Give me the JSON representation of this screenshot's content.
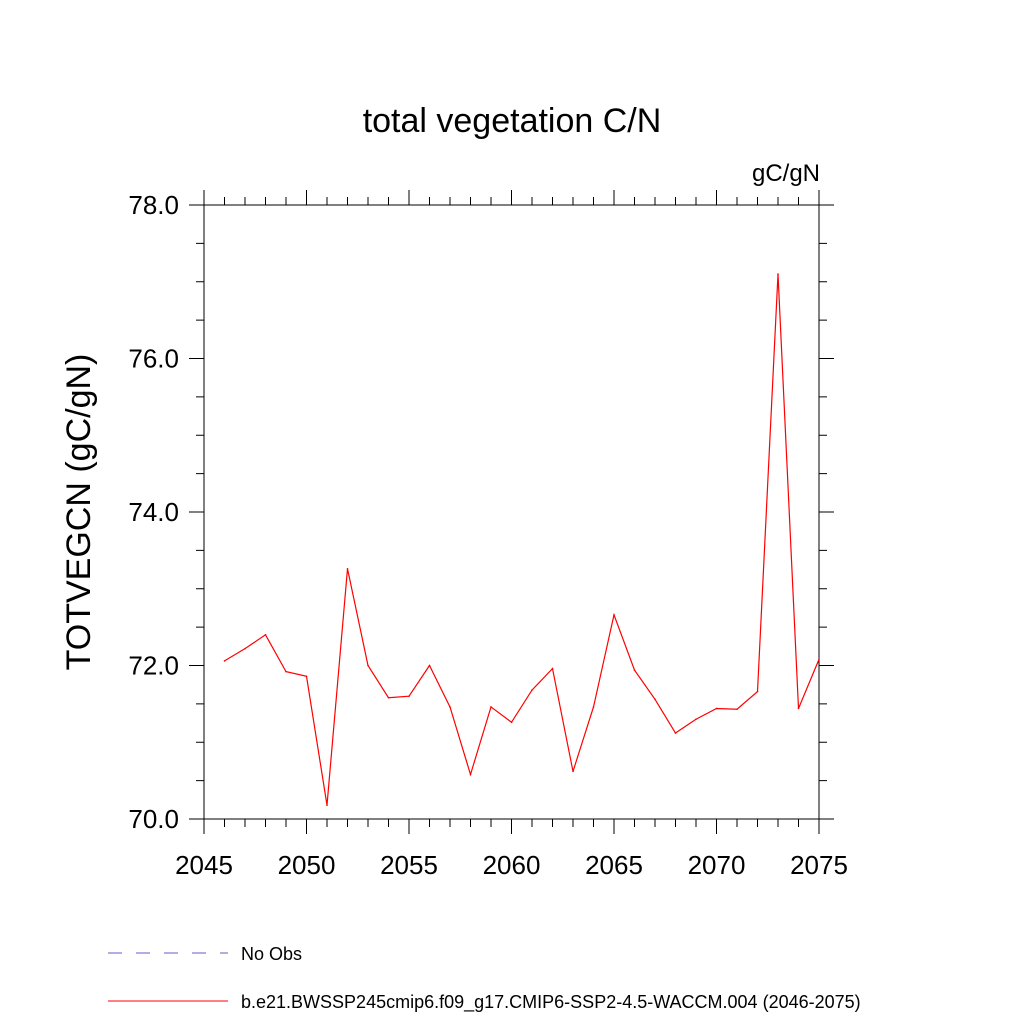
{
  "chart_data": {
    "type": "line",
    "title": "total vegetation C/N",
    "units_label": "gC/gN",
    "xlabel": "",
    "ylabel": "TOTVEGCN  (gC/gN)",
    "xlim": [
      2045,
      2075
    ],
    "ylim": [
      70.0,
      78.0
    ],
    "x_ticks": [
      2045,
      2050,
      2055,
      2060,
      2065,
      2070,
      2075
    ],
    "x_tick_labels": [
      "2045",
      "2050",
      "2055",
      "2060",
      "2065",
      "2070",
      "2075"
    ],
    "y_ticks": [
      70.0,
      72.0,
      74.0,
      76.0,
      78.0
    ],
    "y_tick_labels": [
      "70.0",
      "72.0",
      "74.0",
      "76.0",
      "78.0"
    ],
    "x_minor_step": 1,
    "y_minor_step": 0.5,
    "grid": false,
    "legend_position": "bottom-left",
    "series": [
      {
        "name": "b.e21.BWSSP245cmip6.f09_g17.CMIP6-SSP2-4.5-WACCM.004 (2046-2075)",
        "color": "#ff0000",
        "style": "solid",
        "x": [
          2046,
          2047,
          2048,
          2049,
          2050,
          2051,
          2052,
          2053,
          2054,
          2055,
          2056,
          2057,
          2058,
          2059,
          2060,
          2061,
          2062,
          2063,
          2064,
          2065,
          2066,
          2067,
          2068,
          2069,
          2070,
          2071,
          2072,
          2073,
          2074,
          2075
        ],
        "values": [
          72.06,
          72.22,
          72.4,
          71.92,
          71.86,
          70.18,
          73.26,
          72.0,
          71.58,
          71.6,
          72.0,
          71.46,
          70.58,
          71.46,
          71.26,
          71.68,
          71.96,
          70.62,
          71.46,
          72.66,
          71.94,
          71.56,
          71.12,
          71.3,
          71.44,
          71.43,
          71.66,
          77.1,
          71.44,
          72.08
        ]
      }
    ],
    "legend": [
      {
        "label": "No Obs",
        "color": "#6a5acd",
        "style": "dashed"
      },
      {
        "label": "b.e21.BWSSP245cmip6.f09_g17.CMIP6-SSP2-4.5-WACCM.004 (2046-2075)",
        "color": "#ff0000",
        "style": "solid"
      }
    ]
  }
}
